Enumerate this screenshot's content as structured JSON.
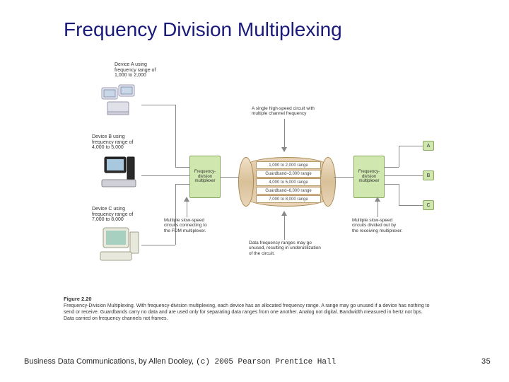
{
  "title": "Frequency Division Multiplexing",
  "devices": {
    "a": {
      "label": "Device A using\nfrequency range of\n1,000 to 2,000"
    },
    "b": {
      "label": "Device B using\nfrequency range of\n4,000 to 5,000"
    },
    "c": {
      "label": "Device C using\nfrequency range of\n7,000 to 8,000"
    }
  },
  "mux_left": "Frequency-\ndivision\nmultiplexer",
  "mux_right": "Frequency-\ndivision\nmultiplexer",
  "outputs": {
    "a": "A",
    "b": "B",
    "c": "C"
  },
  "cylinder_rows": [
    "1,000 to 2,000 range",
    "Guardband–3,000 range",
    "4,000 to 5,000 range",
    "Guardband–6,000 range",
    "7,000 to 8,000 range"
  ],
  "annotations": {
    "top": "A single high-speed circuit with\nmultiple channel frequency",
    "bottom_left": "Multiple slow-speed\ncircuits connecting to\nthe FDM multiplexer.",
    "bottom_mid": "Data frequency ranges may go\nunused, resulting in underutilization\nof the circuit.",
    "bottom_right": "Multiple slow-speed\ncircuits divided out by\nthe receiving multiplexer."
  },
  "figure": {
    "num": "Figure 2.20",
    "caption": "Frequency-Division Multiplexing. With frequency-division multiplexing, each device has an allocated frequency range. A range may go unused if a device has nothing to send or receive. Guardbands carry no data and are used only for separating data ranges from one another. Analog not digital. Bandwidth measured in hertz not bps. Data carried on frequency channels not frames."
  },
  "footer": {
    "text": "Business Data Communications, by Allen Dooley, ",
    "mono": "(c) 2005 Pearson Prentice Hall",
    "page": "35"
  },
  "colors": {
    "title": "#1a1a7a",
    "mux_bg": "#d0e8b0",
    "cyl_fill": "#e8d4b8",
    "line": "#888888"
  }
}
